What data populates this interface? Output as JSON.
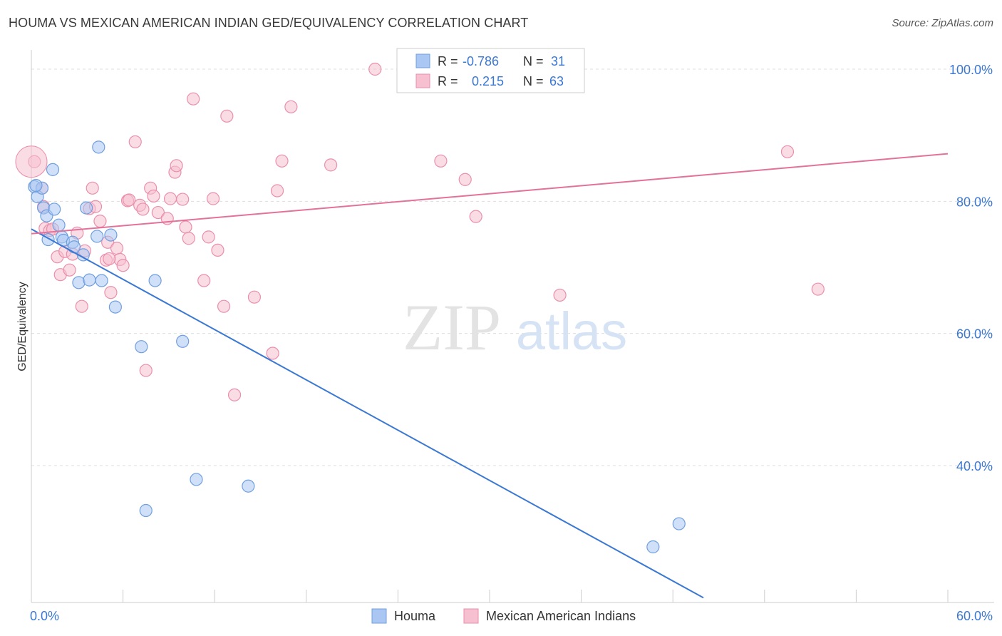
{
  "title": "HOUMA VS MEXICAN AMERICAN INDIAN GED/EQUIVALENCY CORRELATION CHART",
  "source": "Source: ZipAtlas.com",
  "watermark": {
    "zip": "ZIP",
    "atlas": "atlas"
  },
  "colors": {
    "houma_fill": "#a9c7f2",
    "houma_stroke": "#6f9fe0",
    "houma_line": "#3a78d4",
    "mai_fill": "#f6c0d0",
    "mai_stroke": "#ea8fac",
    "mai_line": "#e3729a",
    "tick_label": "#3a78d4",
    "grid": "#dddddd"
  },
  "legend_box": {
    "rows": [
      {
        "r_label": "R = ",
        "r_value": "-0.786",
        "n_label": "N = ",
        "n_value": "31"
      },
      {
        "r_label": "R = ",
        "r_value": "0.215",
        "n_label": "N = ",
        "n_value": "63"
      }
    ]
  },
  "chart_data": {
    "type": "scatter",
    "title": "HOUMA VS MEXICAN AMERICAN INDIAN GED/EQUIVALENCY CORRELATION CHART",
    "xlabel": "",
    "ylabel": "GED/Equivalency",
    "xlim": [
      0,
      60
    ],
    "ylim": [
      20,
      100
    ],
    "x_tick_labels": [
      "0.0%",
      "60.0%"
    ],
    "y_ticks": [
      40,
      60,
      80,
      100
    ],
    "y_tick_labels": [
      "40.0%",
      "60.0%",
      "80.0%",
      "100.0%"
    ],
    "grid": true,
    "legend_position": "bottom-center",
    "series": [
      {
        "name": "Houma",
        "r": -0.786,
        "n": 31,
        "trend": {
          "x": [
            0,
            44.0
          ],
          "y": [
            75.8,
            20.0
          ]
        },
        "points": [
          {
            "x": 0.2,
            "y": 82.2
          },
          {
            "x": 0.4,
            "y": 80.7
          },
          {
            "x": 0.7,
            "y": 82.0
          },
          {
            "x": 0.8,
            "y": 79.0
          },
          {
            "x": 1.0,
            "y": 77.8
          },
          {
            "x": 1.1,
            "y": 74.2
          },
          {
            "x": 1.4,
            "y": 84.8
          },
          {
            "x": 1.5,
            "y": 78.8
          },
          {
            "x": 1.8,
            "y": 76.4
          },
          {
            "x": 2.0,
            "y": 74.6
          },
          {
            "x": 2.1,
            "y": 74.1
          },
          {
            "x": 2.7,
            "y": 73.8
          },
          {
            "x": 2.8,
            "y": 73.1
          },
          {
            "x": 3.1,
            "y": 67.7
          },
          {
            "x": 3.4,
            "y": 71.9
          },
          {
            "x": 3.6,
            "y": 79.0
          },
          {
            "x": 3.8,
            "y": 68.1
          },
          {
            "x": 4.3,
            "y": 74.7
          },
          {
            "x": 4.4,
            "y": 88.2
          },
          {
            "x": 4.6,
            "y": 68.0
          },
          {
            "x": 5.2,
            "y": 74.9
          },
          {
            "x": 5.5,
            "y": 64.0
          },
          {
            "x": 7.2,
            "y": 58.0
          },
          {
            "x": 7.5,
            "y": 33.2
          },
          {
            "x": 8.1,
            "y": 68.0
          },
          {
            "x": 9.9,
            "y": 58.8
          },
          {
            "x": 10.8,
            "y": 37.9
          },
          {
            "x": 14.2,
            "y": 36.9
          },
          {
            "x": 40.7,
            "y": 27.7
          },
          {
            "x": 42.4,
            "y": 31.2
          },
          {
            "x": 0.3,
            "y": 82.4
          }
        ]
      },
      {
        "name": "Mexican American Indians",
        "r": 0.215,
        "n": 63,
        "trend": {
          "x": [
            0,
            60
          ],
          "y": [
            75.1,
            87.2
          ]
        },
        "points": [
          {
            "x": 0.2,
            "y": 86.0
          },
          {
            "x": 0.7,
            "y": 82.0
          },
          {
            "x": 0.8,
            "y": 79.2
          },
          {
            "x": 0.9,
            "y": 75.9
          },
          {
            "x": 1.2,
            "y": 75.6
          },
          {
            "x": 1.4,
            "y": 75.8
          },
          {
            "x": 1.7,
            "y": 71.6
          },
          {
            "x": 1.9,
            "y": 68.9
          },
          {
            "x": 2.2,
            "y": 72.4
          },
          {
            "x": 2.5,
            "y": 69.6
          },
          {
            "x": 2.7,
            "y": 72.0
          },
          {
            "x": 3.0,
            "y": 75.2
          },
          {
            "x": 3.3,
            "y": 64.1
          },
          {
            "x": 3.5,
            "y": 72.5
          },
          {
            "x": 3.8,
            "y": 78.9
          },
          {
            "x": 4.0,
            "y": 82.0
          },
          {
            "x": 4.2,
            "y": 79.2
          },
          {
            "x": 4.5,
            "y": 77.0
          },
          {
            "x": 4.9,
            "y": 71.1
          },
          {
            "x": 5.0,
            "y": 73.8
          },
          {
            "x": 5.2,
            "y": 66.2
          },
          {
            "x": 5.6,
            "y": 72.9
          },
          {
            "x": 5.8,
            "y": 71.2
          },
          {
            "x": 6.0,
            "y": 70.3
          },
          {
            "x": 6.3,
            "y": 80.1
          },
          {
            "x": 6.4,
            "y": 80.2
          },
          {
            "x": 6.8,
            "y": 89.0
          },
          {
            "x": 7.1,
            "y": 79.4
          },
          {
            "x": 7.3,
            "y": 78.8
          },
          {
            "x": 7.5,
            "y": 54.4
          },
          {
            "x": 7.8,
            "y": 82.0
          },
          {
            "x": 8.0,
            "y": 80.8
          },
          {
            "x": 8.3,
            "y": 78.3
          },
          {
            "x": 8.9,
            "y": 77.4
          },
          {
            "x": 9.1,
            "y": 80.4
          },
          {
            "x": 9.4,
            "y": 84.4
          },
          {
            "x": 9.5,
            "y": 85.4
          },
          {
            "x": 9.9,
            "y": 80.3
          },
          {
            "x": 10.1,
            "y": 76.1
          },
          {
            "x": 10.3,
            "y": 74.4
          },
          {
            "x": 10.6,
            "y": 95.5
          },
          {
            "x": 11.3,
            "y": 68.0
          },
          {
            "x": 11.6,
            "y": 74.6
          },
          {
            "x": 11.9,
            "y": 80.4
          },
          {
            "x": 12.2,
            "y": 72.6
          },
          {
            "x": 12.6,
            "y": 64.1
          },
          {
            "x": 12.8,
            "y": 92.9
          },
          {
            "x": 13.3,
            "y": 50.7
          },
          {
            "x": 14.6,
            "y": 65.5
          },
          {
            "x": 15.8,
            "y": 57.0
          },
          {
            "x": 16.1,
            "y": 81.6
          },
          {
            "x": 16.4,
            "y": 86.1
          },
          {
            "x": 17.0,
            "y": 94.3
          },
          {
            "x": 19.6,
            "y": 85.5
          },
          {
            "x": 22.5,
            "y": 100.0
          },
          {
            "x": 26.8,
            "y": 86.1
          },
          {
            "x": 28.4,
            "y": 83.3
          },
          {
            "x": 29.1,
            "y": 77.7
          },
          {
            "x": 31.6,
            "y": 100.0
          },
          {
            "x": 34.6,
            "y": 65.8
          },
          {
            "x": 49.5,
            "y": 87.5
          },
          {
            "x": 51.5,
            "y": 66.7
          },
          {
            "x": 5.1,
            "y": 71.3
          }
        ]
      }
    ]
  }
}
